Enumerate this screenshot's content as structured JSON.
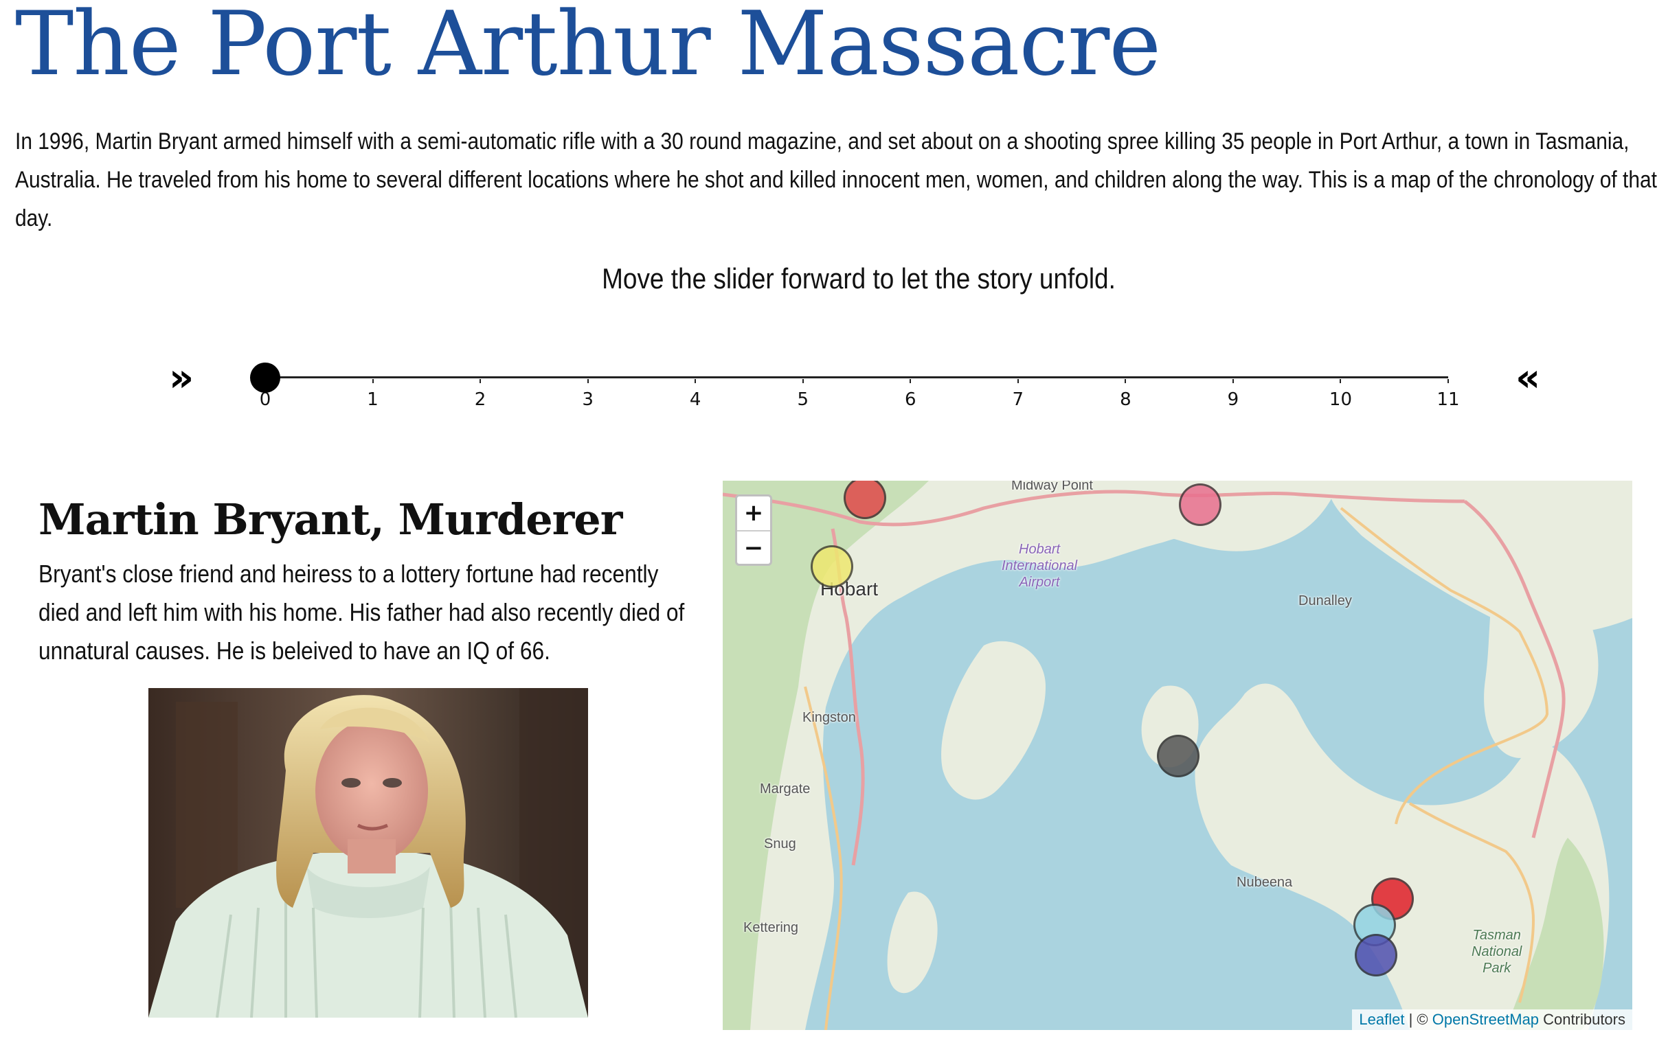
{
  "page": {
    "title": "The Port Arthur Massacre",
    "intro": "In 1996, Martin Bryant armed himself with a semi-automatic rifle with a 30 round magazine, and set about on a shooting spree killing 35 people in Port Arthur, a town in Tasmania, Australia. He traveled from his home to several different locations where he shot and killed innocent men, women, and children along the way. This is a map of the chronology of that day.",
    "instruction": "Move the slider forward to let the story unfold."
  },
  "slider": {
    "prev_label": "»",
    "next_label": "«",
    "min": 0,
    "max": 11,
    "value": 0,
    "ticks": [
      "0",
      "1",
      "2",
      "3",
      "4",
      "5",
      "6",
      "7",
      "8",
      "9",
      "10",
      "11"
    ]
  },
  "story": {
    "heading": "Martin Bryant, Murderer",
    "text": "Bryant's close friend and heiress to a lottery fortune had recently died and left him with his home. His father had also recently died of unnatural causes. He is beleived to have an IQ of 66."
  },
  "map": {
    "zoom_in": "+",
    "zoom_out": "−",
    "attribution": {
      "leaflet": "Leaflet",
      "separator": " | © ",
      "osm": "OpenStreetMap",
      "suffix": " Contributors"
    },
    "places": {
      "midway_point": "Midway Point",
      "hobart": "Hobart",
      "airport_1": "Hobart",
      "airport_2": "International",
      "airport_3": "Airport",
      "dunalley": "Dunalley",
      "kingston": "Kingston",
      "margate": "Margate",
      "snug": "Snug",
      "kettering": "Kettering",
      "nubeena": "Nubeena",
      "park_1": "Tasman",
      "park_2": "National",
      "park_3": "Park"
    },
    "markers": [
      {
        "id": "red-top",
        "color": "#e04a4a"
      },
      {
        "id": "pink",
        "color": "#e8708f"
      },
      {
        "id": "yellow",
        "color": "#eee870"
      },
      {
        "id": "gray",
        "color": "#555555"
      },
      {
        "id": "red-bottom",
        "color": "#e0202a"
      },
      {
        "id": "cyan",
        "color": "#8fd3e3"
      },
      {
        "id": "blue",
        "color": "#5050b0"
      }
    ]
  },
  "colors": {
    "title": "#1d4f99",
    "water": "#aad3df",
    "land": "#e9eddf",
    "forest": "#c8dfb7",
    "road_primary": "#e8a0a3",
    "road_secondary": "#f2c98a"
  }
}
